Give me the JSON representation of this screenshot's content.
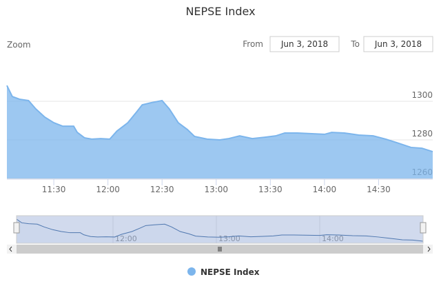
{
  "chart_data": {
    "type": "area",
    "title": "NEPSE Index",
    "range_selector": {
      "label": "Zoom",
      "from_label": "From",
      "from": "Jun 3, 2018",
      "to_label": "To",
      "to": "Jun 3, 2018"
    },
    "x": [
      "11:04",
      "11:07",
      "11:11",
      "11:16",
      "11:20",
      "11:25",
      "11:30",
      "11:35",
      "11:41",
      "11:43",
      "11:47",
      "11:51",
      "11:56",
      "12:01",
      "12:05",
      "12:11",
      "12:16",
      "12:19",
      "12:24",
      "12:30",
      "12:34",
      "12:39",
      "12:44",
      "12:48",
      "12:55",
      "13:02",
      "13:07",
      "13:13",
      "13:20",
      "13:27",
      "13:33",
      "13:38",
      "13:45",
      "13:54",
      "14:00",
      "14:04",
      "14:11",
      "14:19",
      "14:27",
      "14:34",
      "14:40",
      "14:48",
      "14:54",
      "15:00"
    ],
    "series": [
      {
        "name": "NEPSE Index",
        "color": "#7cb5ec",
        "values": [
          1308.2,
          1302.5,
          1301.1,
          1300.4,
          1296.1,
          1291.8,
          1288.9,
          1287.1,
          1287.1,
          1283.9,
          1281.1,
          1280.4,
          1280.7,
          1280.4,
          1284.6,
          1288.9,
          1294.6,
          1298.2,
          1299.3,
          1300.4,
          1296.1,
          1288.9,
          1285.4,
          1281.8,
          1280.4,
          1280,
          1280.7,
          1282.1,
          1280.7,
          1281.4,
          1282.1,
          1283.6,
          1283.6,
          1283.2,
          1282.9,
          1283.9,
          1283.6,
          1282.5,
          1282.1,
          1280.4,
          1278.6,
          1276.1,
          1275.7,
          1273.9
        ]
      }
    ],
    "xlim": [
      "11:04",
      "15:00"
    ],
    "xticks": [
      "11:30",
      "12:00",
      "12:30",
      "13:00",
      "13:30",
      "14:00",
      "14:30"
    ],
    "ylim": [
      1260,
      1318.6
    ],
    "yticks": [
      1260,
      1280,
      1300
    ],
    "grid": true,
    "navigator_xticks": [
      "12:00",
      "13:00",
      "14:00"
    ],
    "legend": "bottom"
  }
}
